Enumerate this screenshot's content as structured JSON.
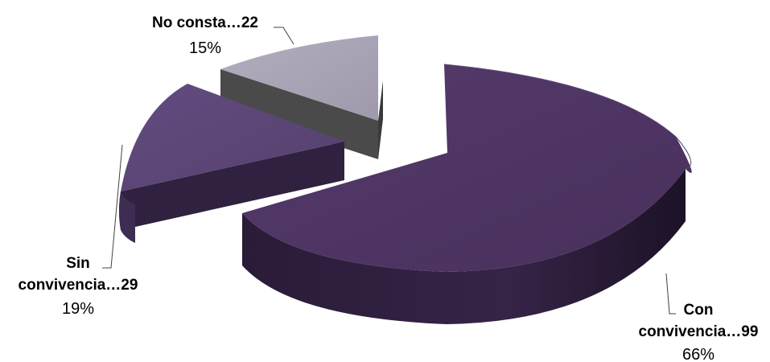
{
  "chart_data": {
    "type": "pie",
    "style": "3d-exploded",
    "title": "",
    "series": [
      {
        "values": [
          99,
          29,
          22
        ],
        "percentages": [
          "66%",
          "19%",
          "15%"
        ],
        "categories": [
          "Con convivencia",
          "Sin convivencia",
          "No consta"
        ]
      }
    ],
    "slices": [
      {
        "key": "con",
        "name_lines": [
          "Con",
          "convivencia…99"
        ],
        "count": 99,
        "percent": "66%",
        "color": "#4e3563"
      },
      {
        "key": "sin",
        "name_lines": [
          "Sin",
          "convivencia…29"
        ],
        "count": 29,
        "percent": "19%",
        "color": "#5a4476"
      },
      {
        "key": "nc",
        "name_lines": [
          "No consta…22"
        ],
        "count": 22,
        "percent": "15%",
        "color": "#a9a4b5"
      }
    ],
    "legend": "none",
    "grid": false
  }
}
